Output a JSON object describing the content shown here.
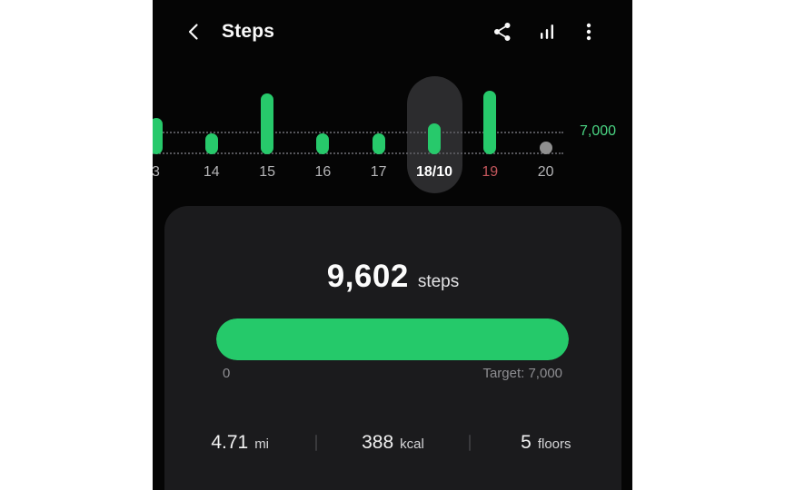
{
  "header": {
    "title": "Steps",
    "back_icon": "chevron-left",
    "action_icons": [
      "share",
      "bar-chart",
      "more-vertical"
    ]
  },
  "chart_data": {
    "type": "bar",
    "categories": [
      "3",
      "14",
      "15",
      "16",
      "17",
      "18/10",
      "19",
      "20"
    ],
    "values": [
      11200,
      6500,
      18800,
      6500,
      6500,
      9602,
      19600,
      0
    ],
    "ylim": [
      0,
      20000
    ],
    "target": 7000,
    "target_label": "7,000",
    "selected_category": "18/10",
    "selected_value": 9602,
    "alert_categories": [
      "19"
    ],
    "no_data_categories": [
      "20"
    ],
    "gridlines": [
      "target",
      "baseline"
    ],
    "gridline_style": "dotted",
    "legend": "none",
    "xlabel": "",
    "ylabel": ""
  },
  "summary": {
    "value": "9,602",
    "unit": "steps",
    "progress_percent": 100,
    "range_start_label": "0",
    "target_label": "Target: 7,000"
  },
  "metrics": [
    {
      "value": "4.71",
      "unit": "mi"
    },
    {
      "value": "388",
      "unit": "kcal"
    },
    {
      "value": "5",
      "unit": "floors"
    }
  ],
  "colors": {
    "accent_green": "#27c96b",
    "axis_label_green": "#4ad583",
    "alert_red": "#c4575c",
    "phone_bg": "#050505",
    "card_bg": "#1b1b1d",
    "selected_pill_bg": "#2c2c2e",
    "muted_text": "#8e8e92",
    "day_label_text": "#b4b4b6",
    "rest_dot": "#8f8f8f"
  }
}
